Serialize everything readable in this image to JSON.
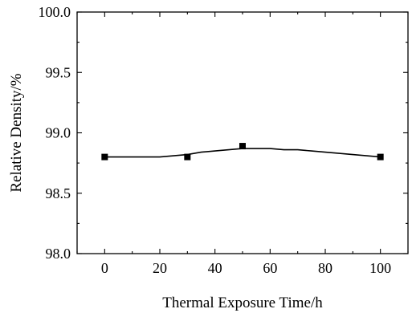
{
  "chart_data": {
    "type": "scatter",
    "title": "",
    "xlabel": "Thermal Exposure Time/h",
    "ylabel": "Relative Density/%",
    "xlim": [
      -10,
      110
    ],
    "ylim": [
      98.0,
      100.0
    ],
    "x_ticks": [
      0,
      20,
      40,
      60,
      80,
      100
    ],
    "x_tick_labels": [
      "0",
      "20",
      "40",
      "60",
      "80",
      "100"
    ],
    "y_ticks": [
      98.0,
      98.5,
      99.0,
      99.5,
      100.0
    ],
    "y_tick_labels": [
      "98.0",
      "98.5",
      "99.0",
      "99.5",
      "100.0"
    ],
    "grid": false,
    "series": [
      {
        "marker": "square",
        "x": [
          0,
          30,
          50,
          100
        ],
        "y": [
          98.8,
          98.8,
          98.89,
          98.8
        ]
      }
    ],
    "fit_curve": {
      "x": [
        0,
        10,
        20,
        25,
        30,
        35,
        40,
        45,
        50,
        55,
        60,
        65,
        70,
        75,
        80,
        85,
        90,
        95,
        100
      ],
      "y": [
        98.8,
        98.8,
        98.8,
        98.81,
        98.82,
        98.84,
        98.85,
        98.86,
        98.87,
        98.87,
        98.87,
        98.86,
        98.86,
        98.85,
        98.84,
        98.83,
        98.82,
        98.81,
        98.8
      ]
    }
  }
}
